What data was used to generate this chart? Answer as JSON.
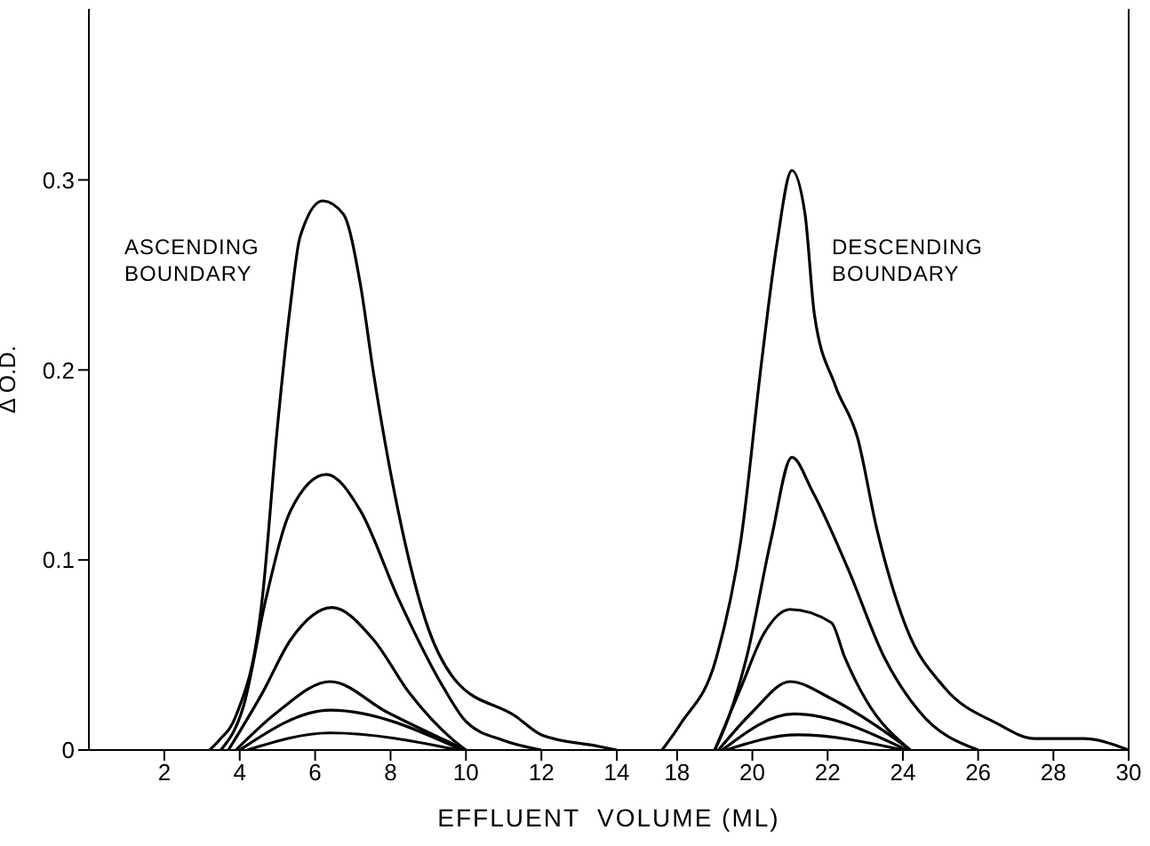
{
  "chart_data": [
    {
      "type": "line",
      "xlabel": "EFFLUENT  VOLUME (ML)",
      "ylabel": "Δ O.D.",
      "xlim": [
        0,
        14.8
      ],
      "xticks": [
        2,
        4,
        6,
        8,
        10,
        12,
        14
      ],
      "ylim": [
        0,
        0.39
      ],
      "yticks": [
        0,
        0.1,
        0.2,
        0.3
      ],
      "marker": "none",
      "annotations": [
        "ASCENDING BOUNDARY"
      ],
      "series": [
        {
          "color": "#000000",
          "x": [
            3.2,
            3.45,
            3.9,
            4.6,
            5.0,
            5.35,
            5.6,
            6.2,
            6.75,
            7.2,
            7.55,
            8.2,
            9.0,
            9.75,
            11.3,
            12.0,
            13.5,
            14.0
          ],
          "values": [
            0,
            0.005,
            0.018,
            0.08,
            0.17,
            0.235,
            0.27,
            0.289,
            0.282,
            0.245,
            0.198,
            0.126,
            0.064,
            0.036,
            0.018,
            0.008,
            0.002,
            0
          ]
        },
        {
          "color": "#000000",
          "x": [
            3.5,
            4.1,
            4.7,
            5.35,
            6.3,
            7.2,
            8.2,
            9.4,
            10.0,
            11.0,
            12.0
          ],
          "values": [
            0,
            0.023,
            0.08,
            0.126,
            0.145,
            0.126,
            0.08,
            0.033,
            0.015,
            0.005,
            0
          ]
        },
        {
          "color": "#000000",
          "x": [
            3.7,
            4.6,
            5.35,
            6.45,
            7.55,
            8.5,
            9.8,
            10.0
          ],
          "values": [
            0,
            0.03,
            0.058,
            0.075,
            0.058,
            0.03,
            0.003,
            0
          ]
        },
        {
          "color": "#000000",
          "x": [
            3.9,
            5.0,
            6.4,
            7.9,
            10.0
          ],
          "values": [
            0,
            0.02,
            0.036,
            0.02,
            0
          ]
        },
        {
          "color": "#000000",
          "x": [
            4.0,
            6.4,
            9.9
          ],
          "values": [
            0,
            0.021,
            0
          ]
        },
        {
          "color": "#000000",
          "x": [
            4.2,
            6.4,
            9.8
          ],
          "values": [
            0,
            0.009,
            0
          ]
        }
      ]
    },
    {
      "type": "line",
      "xlim": [
        17.2,
        30
      ],
      "xticks": [
        18,
        20,
        22,
        24,
        26,
        28,
        30
      ],
      "ylim": [
        0,
        0.39
      ],
      "tick_labels": "x",
      "marker": "none",
      "annotations": [
        "DESCENDING BOUNDARY"
      ],
      "series": [
        {
          "color": "#000000",
          "x": [
            17.6,
            18.1,
            19.05,
            19.7,
            20.25,
            20.65,
            21.05,
            21.4,
            21.65,
            22.2,
            22.8,
            23.3,
            24.1,
            25.1,
            26.5,
            27.5,
            28.8,
            30.0
          ],
          "values": [
            0,
            0.014,
            0.049,
            0.111,
            0.205,
            0.266,
            0.305,
            0.282,
            0.229,
            0.192,
            0.164,
            0.117,
            0.064,
            0.033,
            0.014,
            0.006,
            0.006,
            0
          ]
        },
        {
          "color": "#000000",
          "x": [
            19.0,
            19.25,
            19.85,
            20.5,
            21.05,
            21.6,
            22.55,
            23.5,
            24.45,
            26.0
          ],
          "values": [
            0,
            0.011,
            0.049,
            0.111,
            0.154,
            0.136,
            0.095,
            0.049,
            0.02,
            0
          ]
        },
        {
          "color": "#000000",
          "x": [
            19.0,
            19.7,
            20.3,
            21.0,
            22.1,
            22.45,
            23.0,
            24.2
          ],
          "values": [
            0,
            0.033,
            0.061,
            0.074,
            0.067,
            0.049,
            0.027,
            0
          ]
        },
        {
          "color": "#000000",
          "x": [
            19.1,
            20.0,
            21.0,
            22.1,
            23.2,
            24.2
          ],
          "values": [
            0,
            0.02,
            0.036,
            0.027,
            0.014,
            0
          ]
        },
        {
          "color": "#000000",
          "x": [
            19.2,
            21.1,
            24.1
          ],
          "values": [
            0,
            0.019,
            0
          ]
        },
        {
          "color": "#000000",
          "x": [
            19.3,
            21.2,
            24.0
          ],
          "values": [
            0,
            0.008,
            0
          ]
        }
      ]
    }
  ]
}
